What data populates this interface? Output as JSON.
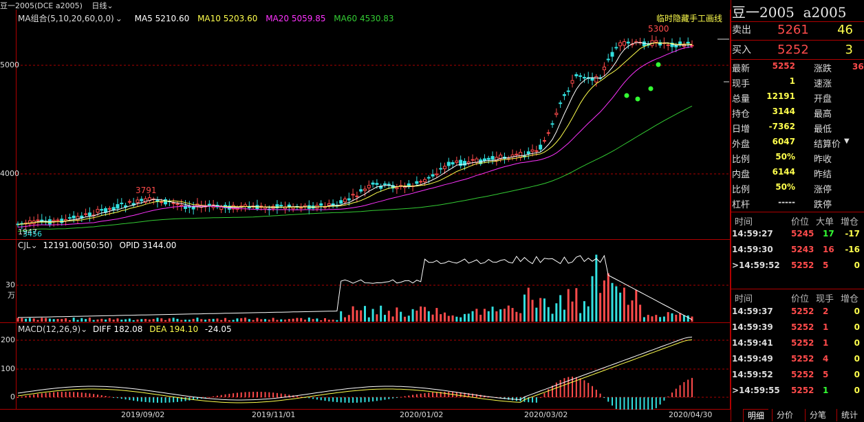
{
  "header": {
    "title": "豆一2005(DCE a2005)",
    "period": "日线",
    "chevron": "chevron-down-icon"
  },
  "main_chart": {
    "ma_label": "MA组合(5,10,20,60,0,0)",
    "ma5": "MA5 5210.60",
    "ma10": "MA10 5203.60",
    "ma20": "MA20 5059.85",
    "ma60": "MA60 4530.83",
    "draw_note": "临时隐藏手工画线",
    "high_label": "5300",
    "mid_label": "3791",
    "low_label_a": "1947",
    "low_label_b": "3456",
    "y_labels": [
      "5000",
      "4000"
    ]
  },
  "volume": {
    "label": "CJL",
    "value": "12191.00(50:50)",
    "opid": "OPID 3144.00",
    "y_label": "30万"
  },
  "macd": {
    "label": "MACD(12,26,9)",
    "diff": "DIFF 182.08",
    "dea": "DEA 194.10",
    "macd_value": "-24.05",
    "y_labels": [
      "200",
      "100",
      "0"
    ]
  },
  "x_axis": [
    "2019/09/02",
    "2019/11/01",
    "2020/01/02",
    "2020/03/02",
    "2020/04/30"
  ],
  "panel": {
    "name": "豆一2005",
    "code": "a2005",
    "sell": {
      "label": "卖出",
      "price": "5261",
      "vol": "46"
    },
    "buy": {
      "label": "买入",
      "price": "5252",
      "vol": "3"
    },
    "stats_left": [
      {
        "label": "最新",
        "value": "5252",
        "color": "#ff4b4b"
      },
      {
        "label": "现手",
        "value": "1",
        "color": "#ffff4d"
      },
      {
        "label": "总量",
        "value": "12191",
        "color": "#ffff4d"
      },
      {
        "label": "持仓",
        "value": "3144",
        "color": "#ffff4d"
      },
      {
        "label": "日增",
        "value": "-7362",
        "color": "#ffff4d"
      },
      {
        "label": "外盘",
        "value": "6047",
        "color": "#ffff4d"
      },
      {
        "label": "比例",
        "value": "50%",
        "color": "#ffff4d"
      },
      {
        "label": "内盘",
        "value": "6144",
        "color": "#ffff4d"
      },
      {
        "label": "比例",
        "value": "50%",
        "color": "#ffff4d"
      },
      {
        "label": "杠杆",
        "value": "-----",
        "color": "#ddd"
      }
    ],
    "stats_right": [
      "涨跌",
      "速涨",
      "开盘",
      "最高",
      "最低",
      "结算价",
      "昨收",
      "昨结",
      "涨停",
      "跌停"
    ],
    "change_partial": "36",
    "big_trades_header": [
      "时间",
      "价位",
      "大单",
      "增仓"
    ],
    "big_trades": [
      {
        "time": "14:59:27",
        "price": "5245",
        "vol": "17",
        "chg": "-17",
        "vol_color": "#33ff33",
        "chg_color": "#ffff4d"
      },
      {
        "time": "14:59:30",
        "price": "5243",
        "vol": "16",
        "chg": "-16",
        "vol_color": "#ff4b4b",
        "chg_color": "#ffff4d"
      },
      {
        "time": ">14:59:52",
        "price": "5252",
        "vol": "5",
        "chg": "0",
        "vol_color": "#ff4b4b",
        "chg_color": "#ffff4d"
      }
    ],
    "ticks_header": [
      "时间",
      "价位",
      "现手",
      "增仓"
    ],
    "ticks": [
      {
        "time": "14:59:37",
        "price": "5252",
        "vol": "2",
        "chg": "0",
        "vol_color": "#ff4b4b"
      },
      {
        "time": "14:59:39",
        "price": "5252",
        "vol": "1",
        "chg": "0",
        "vol_color": "#ff4b4b"
      },
      {
        "time": "14:59:41",
        "price": "5252",
        "vol": "1",
        "chg": "0",
        "vol_color": "#ff4b4b"
      },
      {
        "time": "14:59:49",
        "price": "5252",
        "vol": "4",
        "chg": "0",
        "vol_color": "#ff4b4b"
      },
      {
        "time": "14:59:52",
        "price": "5252",
        "vol": "5",
        "chg": "0",
        "vol_color": "#ff4b4b"
      },
      {
        "time": ">14:59:55",
        "price": "5252",
        "vol": "1",
        "chg": "0",
        "vol_color": "#33ff33"
      }
    ],
    "tabs": [
      "明细",
      "分价",
      "分笔",
      "统计"
    ]
  },
  "colors": {
    "up": "#ff4b4b",
    "down": "#33e0e0",
    "ma5": "#ffffff",
    "ma10": "#ffff4d",
    "ma20": "#ff33ff",
    "ma60": "#33cc33",
    "grid": "#b00000"
  }
}
